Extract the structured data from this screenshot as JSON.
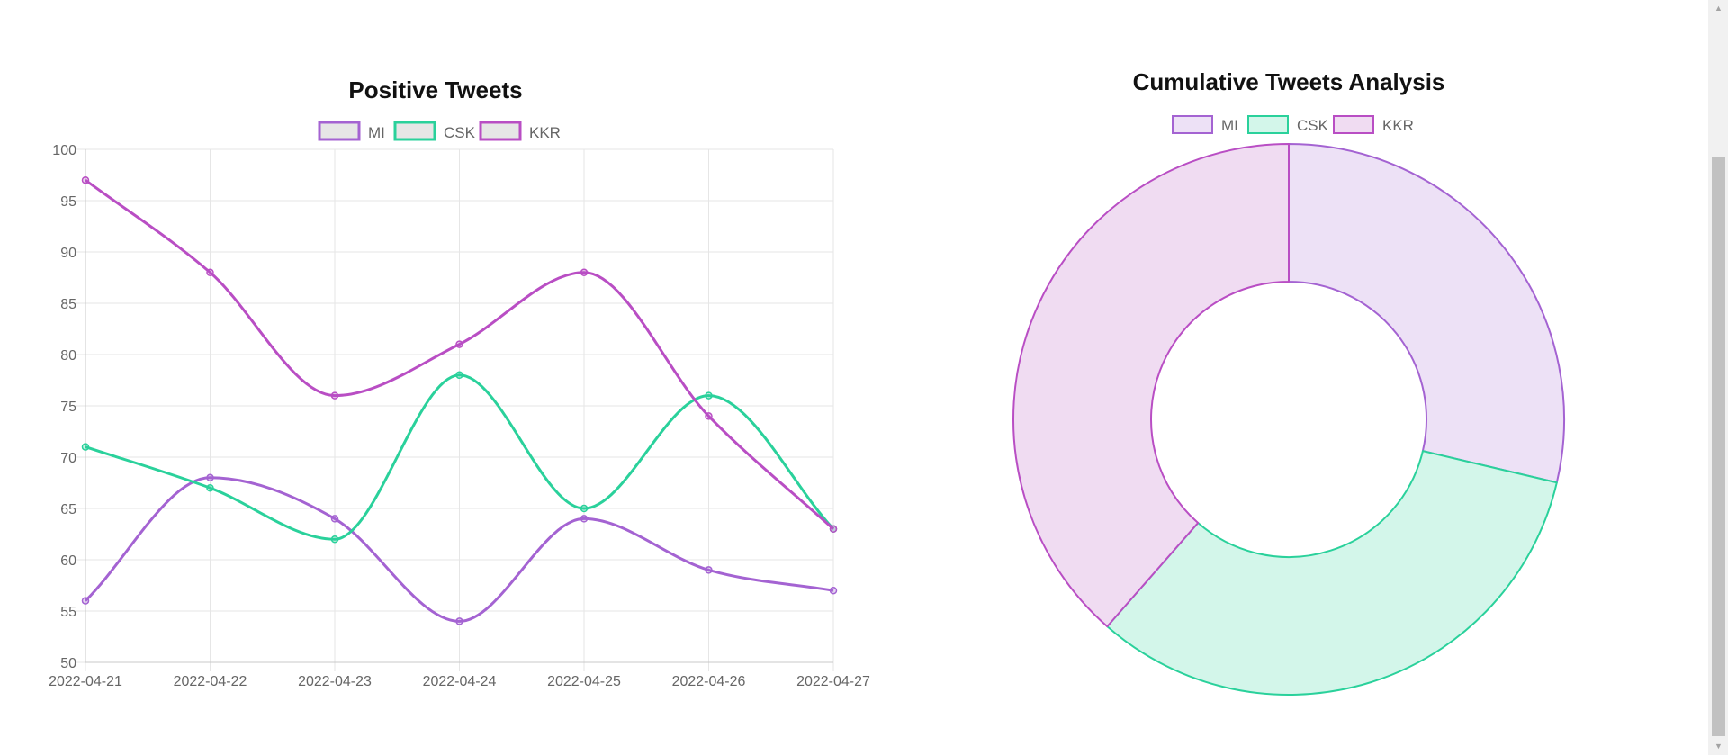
{
  "chart_data": [
    {
      "type": "line",
      "title": "Positive Tweets",
      "xlabel": "",
      "ylabel": "",
      "x": [
        "2022-04-21",
        "2022-04-22",
        "2022-04-23",
        "2022-04-24",
        "2022-04-25",
        "2022-04-26",
        "2022-04-27"
      ],
      "ylim": [
        50,
        100
      ],
      "ytick_step": 5,
      "grid": true,
      "legend_position": "top",
      "curve": "smooth",
      "series": [
        {
          "name": "MI",
          "color": "#a463d2",
          "values": [
            56,
            68,
            64,
            54,
            64,
            59,
            57
          ]
        },
        {
          "name": "CSK",
          "color": "#2ad19b",
          "values": [
            71,
            67,
            62,
            78,
            65,
            76,
            63
          ]
        },
        {
          "name": "KKR",
          "color": "#b94ec4",
          "values": [
            97,
            88,
            76,
            81,
            88,
            74,
            63
          ]
        }
      ]
    },
    {
      "type": "pie",
      "subtype": "doughnut",
      "title": "Cumulative Tweets Analysis",
      "legend_position": "top",
      "labels": [
        "MI",
        "CSK",
        "KKR"
      ],
      "values": [
        422,
        482,
        567
      ],
      "colors": {
        "MI": {
          "border": "#a463d2",
          "fill": "#ede1f6"
        },
        "CSK": {
          "border": "#2ad19b",
          "fill": "#d3f6ea"
        },
        "KKR": {
          "border": "#b94ec4",
          "fill": "#f0dcf2"
        }
      }
    }
  ]
}
